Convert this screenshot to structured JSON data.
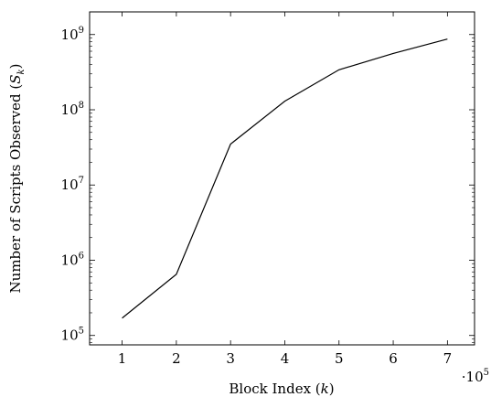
{
  "chart_data": {
    "type": "line",
    "xlabel": "Block Index (k)",
    "ylabel": "Number of Scripts Observed (S_k)",
    "x_multiplier": "·10^5",
    "xscale": "linear",
    "yscale": "log",
    "xlim": [
      0.4,
      7.5
    ],
    "ylim": [
      75000,
      2000000000
    ],
    "xticks": [
      1,
      2,
      3,
      4,
      5,
      6,
      7
    ],
    "yticks": [
      100000,
      1000000,
      10000000,
      100000000,
      1000000000
    ],
    "ytick_labels": [
      {
        "base": "10",
        "exp": "5"
      },
      {
        "base": "10",
        "exp": "6"
      },
      {
        "base": "10",
        "exp": "7"
      },
      {
        "base": "10",
        "exp": "8"
      },
      {
        "base": "10",
        "exp": "9"
      }
    ],
    "grid": false,
    "series": [
      {
        "x": [
          1,
          2,
          3,
          4,
          5,
          6,
          7
        ],
        "y": [
          170000,
          650000,
          35000000,
          130000000,
          340000000,
          560000000,
          870000000
        ]
      }
    ],
    "xlabel_parts": {
      "text": "Block Index (",
      "var": "k",
      "close": ")"
    },
    "ylabel_parts": {
      "text": "Number of Scripts Observed (",
      "var": "S",
      "sub": "k",
      "close": ")"
    },
    "multiplier_parts": {
      "dot": "·10",
      "exp": "5"
    }
  }
}
